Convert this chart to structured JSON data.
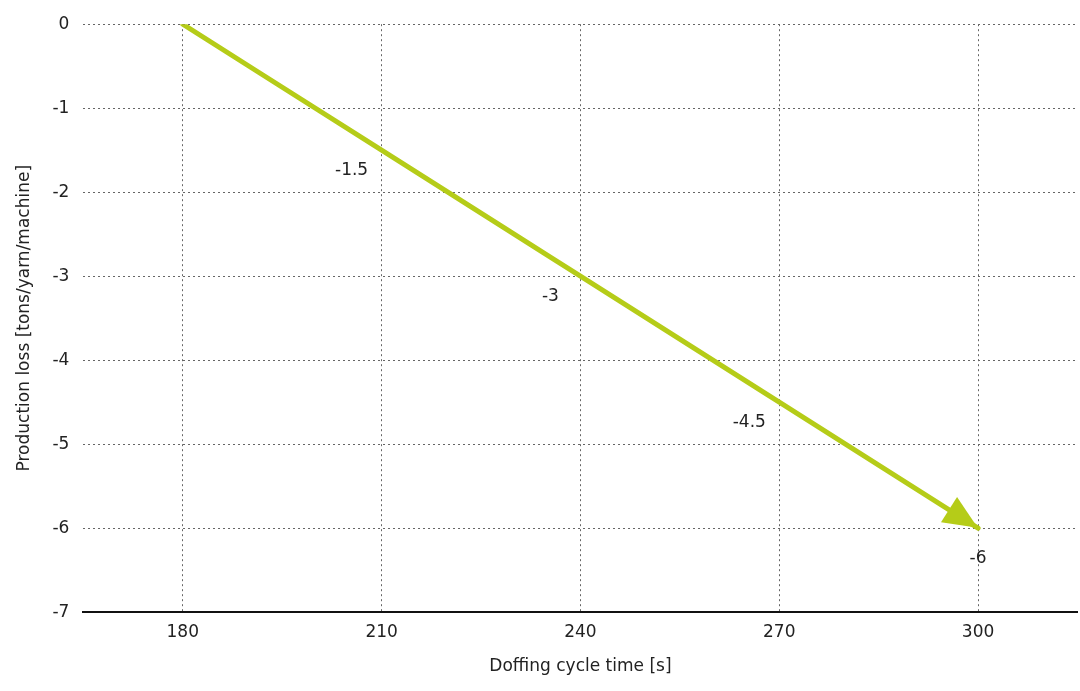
{
  "chart_data": {
    "type": "line",
    "xlabel": "Doffing cycle time [s]",
    "ylabel": "Production loss [tons/yarn/machine]",
    "x": [
      180,
      210,
      240,
      270,
      300
    ],
    "series": [
      {
        "color": "#b5cc18",
        "values": [
          0,
          -1.5,
          -3,
          -4.5,
          -6
        ],
        "value_labels": [
          null,
          "-1.5",
          "-3",
          "-4.5",
          "-6"
        ]
      }
    ],
    "xlim": [
      165,
      315
    ],
    "xticks": [
      180,
      210,
      240,
      270,
      300
    ],
    "ylim": [
      -7,
      0
    ],
    "yticks": [
      0,
      -1,
      -2,
      -3,
      -4,
      -5,
      -6,
      -7
    ],
    "grid": true,
    "legend": false,
    "marker": "none",
    "line_style": "solid"
  }
}
